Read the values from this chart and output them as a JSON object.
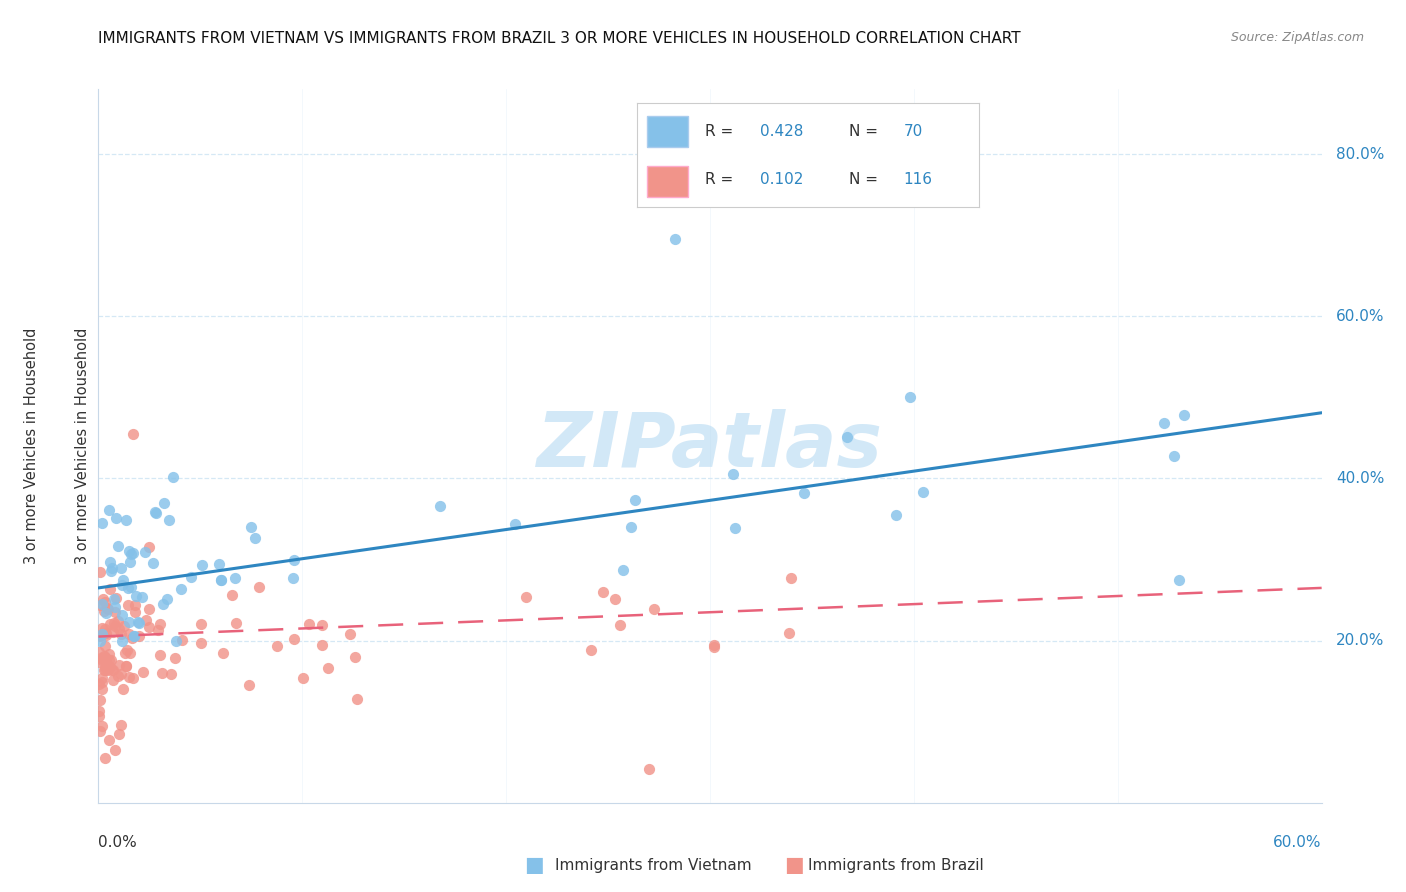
{
  "title": "IMMIGRANTS FROM VIETNAM VS IMMIGRANTS FROM BRAZIL 3 OR MORE VEHICLES IN HOUSEHOLD CORRELATION CHART",
  "source": "Source: ZipAtlas.com",
  "legend_vietnam": "Immigrants from Vietnam",
  "legend_brazil": "Immigrants from Brazil",
  "r_vietnam": "0.428",
  "n_vietnam": "70",
  "r_brazil": "0.102",
  "n_brazil": "116",
  "color_vietnam": "#85C1E9",
  "color_brazil": "#F1948A",
  "color_trendline_vietnam": "#2E86C1",
  "color_trendline_brazil": "#E8627A",
  "color_text_blue": "#2E86C1",
  "color_watermark": "#AED6F1",
  "color_grid": "#D5E8F5",
  "background_color": "#FFFFFF",
  "xlim": [
    0.0,
    0.6
  ],
  "ylim": [
    0.0,
    0.88
  ],
  "yticks": [
    0.2,
    0.4,
    0.6,
    0.8
  ],
  "ytick_labels": [
    "20.0%",
    "40.0%",
    "60.0%",
    "80.0%"
  ]
}
